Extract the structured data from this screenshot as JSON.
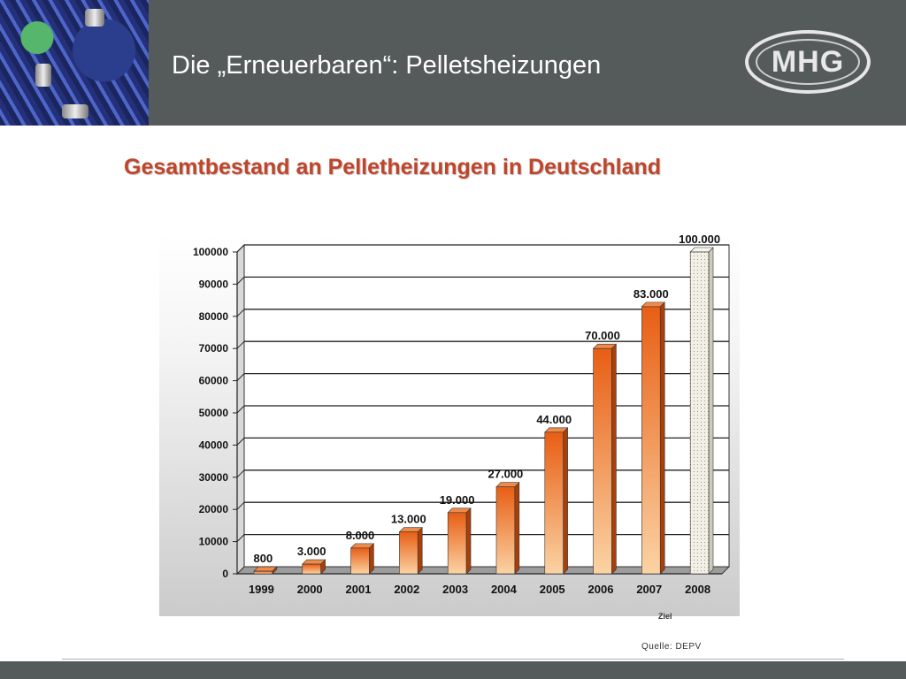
{
  "slide": {
    "title": "Die „Erneuerbaren“: Pelletsheizungen",
    "logo_text": "MHG",
    "source": "Quelle: DEPV",
    "target_note": "Ziel"
  },
  "colors": {
    "header_bg": "#555a5b",
    "chart_title": "#c0452a",
    "bar_top": "#e85e14",
    "bar_bottom": "#fbd3a4",
    "target_bar": "#f2efe6"
  },
  "chart_data": {
    "type": "bar",
    "title": "Gesamtbestand an Pelletheizungen in Deutschland",
    "categories": [
      "1999",
      "2000",
      "2001",
      "2002",
      "2003",
      "2004",
      "2005",
      "2006",
      "2007",
      "2008"
    ],
    "values": [
      800,
      3000,
      8000,
      13000,
      19000,
      27000,
      44000,
      70000,
      83000,
      100000
    ],
    "data_labels": [
      "800",
      "3.000",
      "8.000",
      "13.000",
      "19.000",
      "27.000",
      "44.000",
      "70.000",
      "83.000",
      "100.000"
    ],
    "target_category": "2008",
    "ylim": [
      0,
      100000
    ],
    "yticks": [
      0,
      10000,
      20000,
      30000,
      40000,
      50000,
      60000,
      70000,
      80000,
      90000,
      100000
    ],
    "ytick_labels": [
      "0",
      "10000",
      "20000",
      "30000",
      "40000",
      "50000",
      "60000",
      "70000",
      "80000",
      "90000",
      "100000"
    ],
    "grid": true,
    "legend": "none"
  }
}
